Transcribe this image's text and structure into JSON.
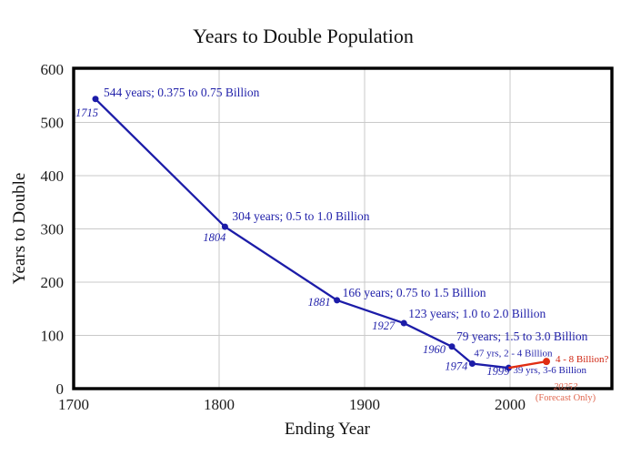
{
  "chart_data": {
    "type": "line",
    "title": "Years to Double Population",
    "xlabel": "Ending Year",
    "ylabel": "Years to Double",
    "xlim": [
      1700,
      2070
    ],
    "ylim": [
      0,
      600
    ],
    "x_ticks": [
      1700,
      1800,
      1900,
      2000
    ],
    "y_ticks": [
      0,
      100,
      200,
      300,
      400,
      500,
      600
    ],
    "grid": true,
    "legend": "none",
    "colors": {
      "historical_line": "#1c1ca8",
      "historical_text": "#2222aa",
      "forecast_line": "#e02d12",
      "forecast_text": "#cf2410",
      "forecast_note": "#e0674f",
      "grid": "#c9c9c9",
      "axis_border": "#000000",
      "tick_text": "#1a1a1a"
    },
    "series": [
      {
        "name": "historical",
        "points": [
          {
            "year": 1715,
            "value": 544,
            "label": "544 years; 0.375 to 0.75 Billion",
            "year_label": "1715",
            "small": false,
            "label_offset": [
              9,
              -3
            ],
            "year_offset": [
              3,
              19
            ]
          },
          {
            "year": 1804,
            "value": 304,
            "label": "304 years; 0.5 to 1.0 Billion",
            "year_label": "1804",
            "small": false,
            "label_offset": [
              8,
              -7
            ],
            "year_offset": [
              1,
              16
            ]
          },
          {
            "year": 1881,
            "value": 166,
            "label": "166 years; 0.75 to 1.5 Billion",
            "year_label": "1881",
            "small": false,
            "label_offset": [
              6,
              -4
            ],
            "year_offset": [
              -7,
              6
            ]
          },
          {
            "year": 1927,
            "value": 123,
            "label": "123 years; 1.0 to 2.0 Billion",
            "year_label": "1927",
            "small": false,
            "label_offset": [
              5,
              -6
            ],
            "year_offset": [
              -10,
              7
            ]
          },
          {
            "year": 1960,
            "value": 79,
            "label": "79 years; 1.5 to 3.0 Billion",
            "year_label": "1960",
            "small": false,
            "label_offset": [
              5,
              -7
            ],
            "year_offset": [
              -7,
              7
            ]
          },
          {
            "year": 1974,
            "value": 47,
            "label": "47 yrs, 2 - 4 Billion",
            "year_label": "1974",
            "small": true,
            "label_offset": [
              2,
              -8
            ],
            "year_offset": [
              -5,
              7
            ]
          },
          {
            "year": 1999,
            "value": 39,
            "label": "39 yrs, 3-6 Billion",
            "year_label": "1999",
            "small": true,
            "label_offset": [
              5,
              6
            ],
            "year_offset": [
              1,
              8
            ]
          }
        ]
      },
      {
        "name": "forecast",
        "points": [
          {
            "year": 1999,
            "value": 39,
            "no_marker": true
          },
          {
            "year": 2025,
            "value": 51,
            "label": "4 - 8 Billion?",
            "small": true,
            "label_offset": [
              10,
              1
            ]
          }
        ]
      }
    ]
  },
  "forecast_note": {
    "line1": "2025?",
    "line2": "(Forecast Only)"
  }
}
